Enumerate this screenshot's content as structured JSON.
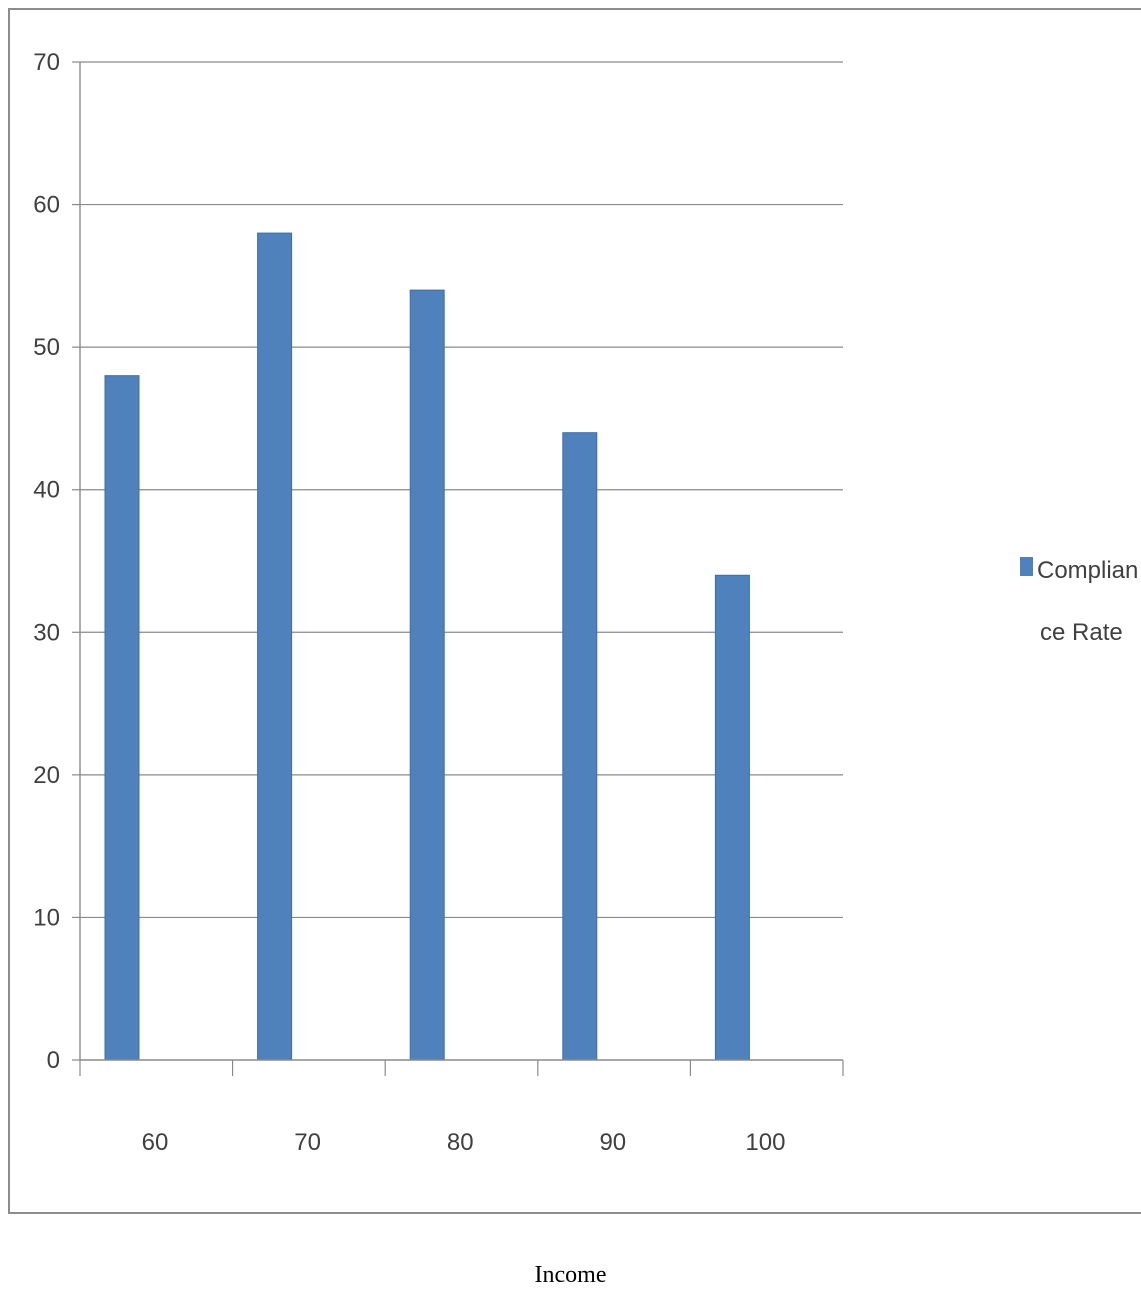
{
  "chart_data": {
    "type": "bar",
    "categories": [
      "60",
      "70",
      "80",
      "90",
      "100"
    ],
    "series": [
      {
        "name": "Compliance Rate",
        "values": [
          48,
          58,
          54,
          44,
          34
        ],
        "color": "#4F81BD"
      }
    ],
    "legend": {
      "lines": [
        "Complian",
        "ce Rate"
      ],
      "placement": "right"
    },
    "xlabel": "Income",
    "ylabel": "",
    "ylim": [
      0,
      70
    ],
    "yticks": [
      0,
      10,
      20,
      30,
      40,
      50,
      60,
      70
    ],
    "grid": true
  }
}
